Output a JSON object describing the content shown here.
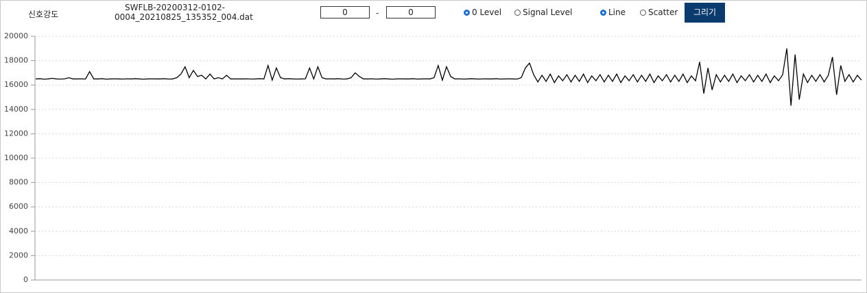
{
  "toolbar": {
    "label": "신호강도",
    "file_name": "SWFLB-20200312-0102-0004_20210825_135352_004.dat",
    "range_start": "0",
    "range_separator": "-",
    "range_end": "0",
    "level_options": [
      {
        "label": "0 Level",
        "checked": true
      },
      {
        "label": "Signal Level",
        "checked": false
      }
    ],
    "style_options": [
      {
        "label": "Line",
        "checked": true
      },
      {
        "label": "Scatter",
        "checked": false
      }
    ],
    "button": "그리기"
  },
  "chart_data": {
    "type": "line",
    "color": "#000000",
    "ylim": [
      0,
      20000
    ],
    "yticks": [
      0,
      2000,
      4000,
      6000,
      8000,
      10000,
      12000,
      14000,
      16000,
      18000,
      20000
    ],
    "grid": true,
    "values": [
      16500,
      16520,
      16480,
      16500,
      16550,
      16500,
      16490,
      16510,
      16600,
      16500,
      16500,
      16510,
      16490,
      17100,
      16500,
      16500,
      16520,
      16480,
      16500,
      16510,
      16500,
      16490,
      16510,
      16500,
      16520,
      16500,
      16480,
      16500,
      16510,
      16500,
      16500,
      16520,
      16490,
      16500,
      16600,
      16900,
      17500,
      16600,
      17200,
      16700,
      16800,
      16500,
      16900,
      16500,
      16600,
      16500,
      16800,
      16500,
      16500,
      16500,
      16500,
      16510,
      16490,
      16500,
      16520,
      16500,
      17600,
      16400,
      17400,
      16600,
      16500,
      16520,
      16500,
      16490,
      16500,
      16510,
      17400,
      16500,
      17500,
      16600,
      16500,
      16510,
      16500,
      16520,
      16490,
      16500,
      16600,
      17000,
      16700,
      16500,
      16500,
      16510,
      16490,
      16500,
      16520,
      16500,
      16480,
      16500,
      16510,
      16500,
      16500,
      16520,
      16490,
      16500,
      16510,
      16500,
      16600,
      17600,
      16400,
      17500,
      16700,
      16500,
      16510,
      16490,
      16500,
      16520,
      16500,
      16490,
      16510,
      16500,
      16500,
      16520,
      16490,
      16500,
      16510,
      16500,
      16490,
      16600,
      17400,
      17800,
      16850,
      16250,
      16800,
      16300,
      16900,
      16200,
      16750,
      16350,
      16850,
      16250,
      16800,
      16300,
      16900,
      16200,
      16750,
      16350,
      16850,
      16250,
      16800,
      16300,
      16900,
      16200,
      16750,
      16350,
      16850,
      16250,
      16800,
      16300,
      16900,
      16200,
      16750,
      16350,
      16850,
      16250,
      16800,
      16300,
      16900,
      16200,
      16750,
      16350,
      17900,
      15300,
      17400,
      15600,
      16850,
      16250,
      16800,
      16300,
      16900,
      16200,
      16750,
      16350,
      16850,
      16250,
      16800,
      16300,
      16900,
      16200,
      16750,
      16350,
      16850,
      19000,
      14300,
      18500,
      14800,
      16900,
      16200,
      16800,
      16300,
      16850,
      16250,
      16800,
      18300,
      15200,
      17600,
      16300,
      16850,
      16250,
      16800,
      16400
    ]
  }
}
